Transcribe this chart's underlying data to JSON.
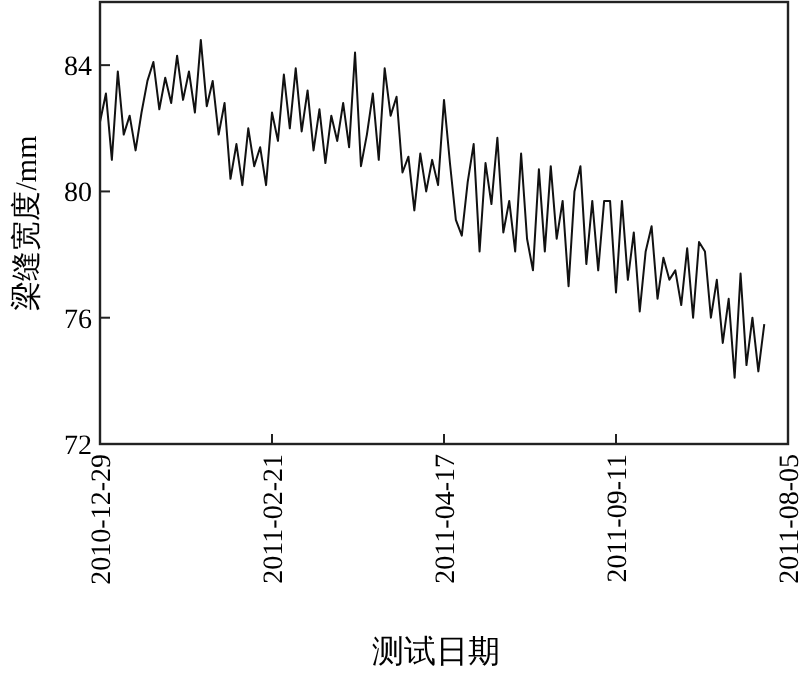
{
  "chart_data": {
    "type": "line",
    "xlabel": "测试日期",
    "ylabel": "梁缝宽度/mm",
    "categories": [
      "2010-12-29",
      null,
      null,
      null,
      null,
      null,
      null,
      null,
      null,
      null,
      null,
      null,
      null,
      null,
      null,
      null,
      null,
      null,
      null,
      null,
      null,
      null,
      null,
      null,
      null,
      null,
      null,
      null,
      null,
      "2011-02-21",
      null,
      null,
      null,
      null,
      null,
      null,
      null,
      null,
      null,
      null,
      null,
      null,
      null,
      null,
      null,
      null,
      null,
      null,
      null,
      null,
      null,
      null,
      null,
      null,
      null,
      null,
      null,
      null,
      "2011-04-17",
      null,
      null,
      null,
      null,
      null,
      null,
      null,
      null,
      null,
      null,
      null,
      null,
      null,
      null,
      null,
      null,
      null,
      null,
      null,
      null,
      null,
      null,
      null,
      null,
      null,
      null,
      null,
      null,
      "2011-09-11",
      null,
      null,
      null,
      null,
      null,
      null,
      null,
      null,
      null,
      null,
      null,
      null,
      null,
      null,
      null,
      null,
      null,
      null,
      null,
      null,
      null,
      null,
      null,
      null,
      null,
      null,
      null,
      null,
      "2011-08-05"
    ],
    "ylim": [
      72,
      86
    ],
    "yticks": [
      72,
      76,
      80,
      84
    ],
    "grid": false,
    "series": [
      {
        "color": "#111111",
        "values": [
          82.2,
          83.1,
          81.0,
          83.8,
          81.8,
          82.4,
          81.3,
          82.5,
          83.5,
          84.1,
          82.6,
          83.6,
          82.8,
          84.3,
          82.9,
          83.8,
          82.5,
          84.8,
          82.7,
          83.5,
          81.8,
          82.8,
          80.4,
          81.5,
          80.2,
          82.0,
          80.8,
          81.4,
          80.2,
          82.5,
          81.6,
          83.7,
          82.0,
          83.9,
          81.9,
          83.2,
          81.3,
          82.6,
          80.9,
          82.4,
          81.6,
          82.8,
          81.4,
          84.4,
          80.8,
          81.8,
          83.1,
          81.0,
          83.9,
          82.4,
          83.0,
          80.6,
          81.1,
          79.4,
          81.2,
          80.0,
          81.0,
          80.2,
          82.9,
          80.9,
          79.1,
          78.6,
          80.3,
          81.5,
          78.1,
          80.9,
          79.6,
          81.7,
          78.7,
          79.7,
          78.1,
          81.2,
          78.5,
          77.5,
          80.7,
          78.1,
          80.8,
          78.5,
          79.7,
          77.0,
          80.0,
          80.8,
          77.7,
          79.7,
          77.5,
          79.7,
          79.7,
          76.8,
          79.7,
          77.2,
          78.7,
          76.2,
          78.1,
          78.9,
          76.6,
          77.9,
          77.2,
          77.5,
          76.4,
          78.2,
          76.0,
          78.4,
          78.1,
          76.0,
          77.2,
          75.2,
          76.6,
          74.1,
          77.4,
          74.5,
          76.0,
          74.3,
          75.8,
          null,
          null,
          null,
          null
        ]
      }
    ]
  }
}
